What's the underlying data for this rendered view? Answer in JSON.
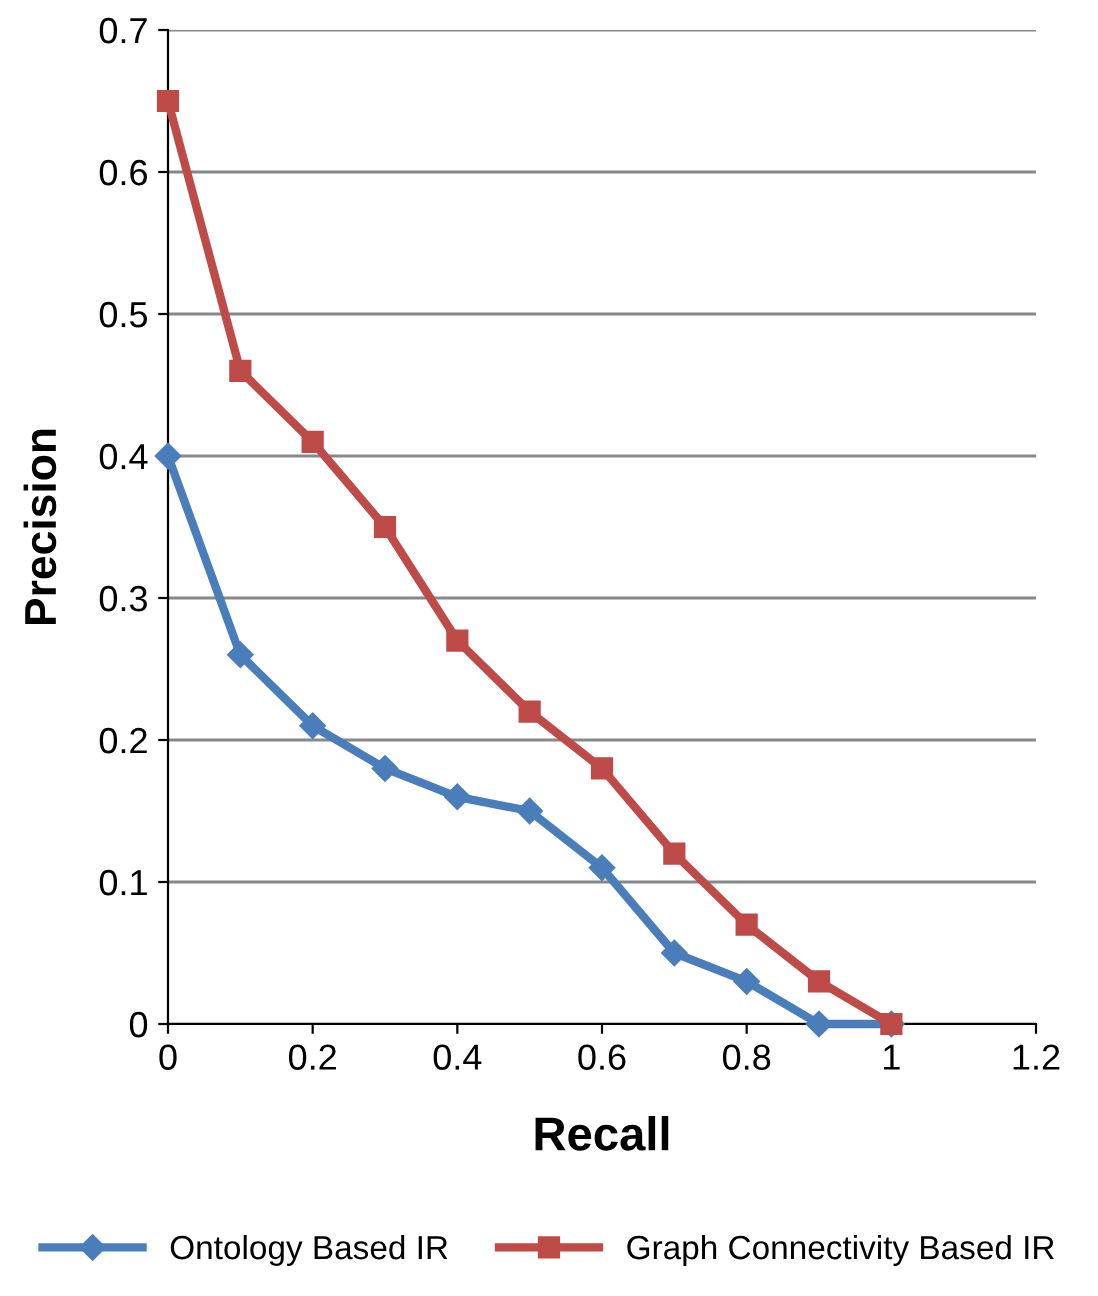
{
  "chart_data": {
    "type": "line",
    "xlabel": "Recall",
    "ylabel": "Precision",
    "x": [
      0,
      0.1,
      0.2,
      0.3,
      0.4,
      0.5,
      0.6,
      0.7,
      0.8,
      0.9,
      1
    ],
    "series": [
      {
        "name": "Ontology Based IR",
        "color": "#4a7ebb",
        "marker": "diamond",
        "values": [
          0.4,
          0.26,
          0.21,
          0.18,
          0.16,
          0.15,
          0.11,
          0.05,
          0.03,
          0.0,
          0.0
        ]
      },
      {
        "name": "Graph Connectivity Based IR",
        "color": "#be4b48",
        "marker": "square",
        "values": [
          0.65,
          0.46,
          0.41,
          0.35,
          0.27,
          0.22,
          0.18,
          0.12,
          0.07,
          0.03,
          0.0
        ]
      }
    ],
    "xlim": [
      0,
      1.2
    ],
    "xticks": [
      0,
      0.2,
      0.4,
      0.6,
      0.8,
      1,
      1.2
    ],
    "ylim": [
      0,
      0.7
    ],
    "yticks": [
      0,
      0.1,
      0.2,
      0.3,
      0.4,
      0.5,
      0.6,
      0.7
    ],
    "grid": "y",
    "legend": "bottom",
    "line_style": "solid"
  }
}
